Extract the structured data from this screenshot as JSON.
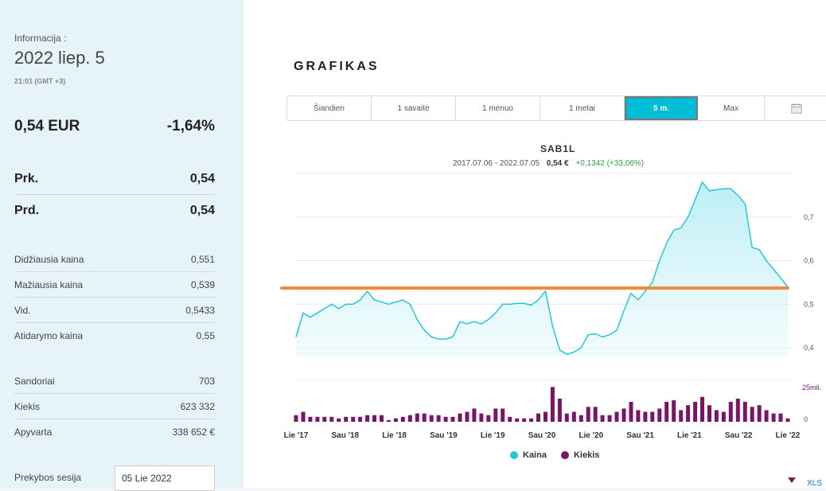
{
  "sidebar": {
    "info_label": "Informacija :",
    "date": "2022 liep. 5",
    "time": "21:01 (GMT +3)",
    "price": "0,54 EUR",
    "change": "-1,64%",
    "bid_label": "Prk.",
    "bid_value": "0,54",
    "ask_label": "Prd.",
    "ask_value": "0,54",
    "stats": [
      {
        "label": "Didžiausia kaina",
        "value": "0,551"
      },
      {
        "label": "Mažiausia kaina",
        "value": "0,539"
      },
      {
        "label": "Vid.",
        "value": "0,5433"
      },
      {
        "label": "Atidarymo kaina",
        "value": "0,55"
      }
    ],
    "stats2": [
      {
        "label": "Sandoriai",
        "value": "703"
      },
      {
        "label": "Kiekis",
        "value": "623 332"
      },
      {
        "label": "Apyvarta",
        "value": "338 652 €"
      }
    ],
    "session_label": "Prekybos sesija",
    "session_value": "05 Lie 2022"
  },
  "main": {
    "title": "GRAFIKAS",
    "tabs": [
      "Šiandien",
      "1 savaitė",
      "1 mėnuo",
      "1 metai",
      "5 m.",
      "Max"
    ],
    "active_tab": "5 m.",
    "calendar_icon": "calendar-icon",
    "bottom_link": "XLS"
  },
  "chart_data": {
    "type": "line",
    "title": "SAB1L",
    "range_text": "2017.07.06 - 2022.07.05",
    "last_value": "0,54 €",
    "change_text": "+0,1342 (+33,06%)",
    "x_tick_labels": [
      "Lie '17",
      "Sau '18",
      "Lie '18",
      "Sau '19",
      "Lie '19",
      "Sau '20",
      "Lie '20",
      "Sau '21",
      "Lie '21",
      "Sau '22",
      "Lie '22"
    ],
    "y_ticks": [
      0.4,
      0.5,
      0.6,
      0.7
    ],
    "y_tick_labels": [
      "0,4",
      "0,5",
      "0,6",
      "0,7"
    ],
    "ylim": [
      0.38,
      0.8
    ],
    "volume_label": "25mil.",
    "volume_zero_label": "0",
    "volume_max": 25,
    "reference_line": 0.537,
    "colors": {
      "price": "#26c6da",
      "volume": "#7b1466",
      "reference": "#f08a3c"
    },
    "series": [
      {
        "name": "Kaina",
        "values": [
          0.425,
          0.48,
          0.47,
          0.48,
          0.49,
          0.5,
          0.49,
          0.5,
          0.5,
          0.51,
          0.53,
          0.51,
          0.505,
          0.5,
          0.505,
          0.51,
          0.5,
          0.465,
          0.44,
          0.425,
          0.42,
          0.42,
          0.425,
          0.46,
          0.455,
          0.46,
          0.455,
          0.465,
          0.48,
          0.5,
          0.5,
          0.502,
          0.502,
          0.498,
          0.51,
          0.53,
          0.45,
          0.395,
          0.385,
          0.39,
          0.4,
          0.43,
          0.432,
          0.425,
          0.43,
          0.44,
          0.485,
          0.525,
          0.51,
          0.53,
          0.55,
          0.6,
          0.64,
          0.67,
          0.675,
          0.7,
          0.74,
          0.78,
          0.76,
          0.763,
          0.765,
          0.765,
          0.75,
          0.73,
          0.63,
          0.625,
          0.6,
          0.58,
          0.56,
          0.54
        ]
      },
      {
        "name": "Kiekis",
        "values": [
          4,
          6,
          3,
          3,
          3,
          3,
          2,
          3,
          3,
          3,
          4,
          4,
          4,
          1,
          2,
          3,
          4,
          5,
          5,
          4,
          4,
          3,
          3,
          5,
          6,
          8,
          5,
          4,
          8,
          8,
          3,
          2,
          2,
          2,
          5,
          6,
          21,
          14,
          5,
          6,
          4,
          9,
          9,
          4,
          4,
          6,
          8,
          12,
          7,
          6,
          6,
          8,
          12,
          13,
          7,
          10,
          12,
          15,
          10,
          7,
          6,
          12,
          14,
          12,
          9,
          10,
          7,
          5,
          5,
          2
        ]
      }
    ]
  },
  "legend": {
    "price": "Kaina",
    "volume": "Kiekis"
  }
}
